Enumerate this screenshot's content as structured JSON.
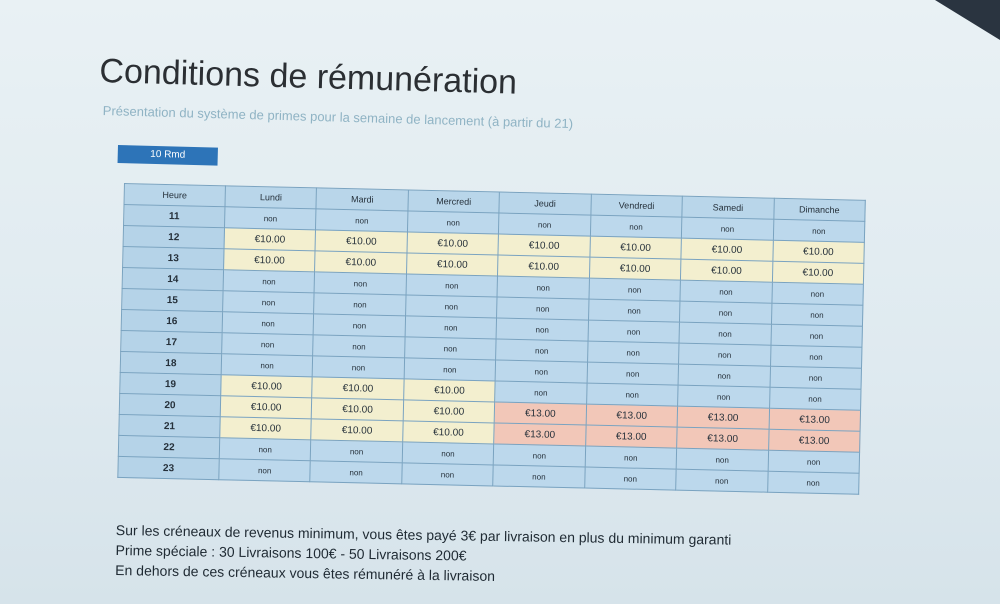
{
  "title": "Conditions de rémunération",
  "subtitle": "Présentation du système de primes pour la semaine de lancement (à partir du 21)",
  "badge": "10 Rmd",
  "table": {
    "headers": [
      "Heure",
      "Lundi",
      "Mardi",
      "Mercredi",
      "Jeudi",
      "Vendredi",
      "Samedi",
      "Dimanche"
    ],
    "rows": [
      {
        "hour": "11",
        "cells": [
          "non",
          "non",
          "non",
          "non",
          "non",
          "non",
          "non"
        ]
      },
      {
        "hour": "12",
        "cells": [
          "€10.00",
          "€10.00",
          "€10.00",
          "€10.00",
          "€10.00",
          "€10.00",
          "€10.00"
        ]
      },
      {
        "hour": "13",
        "cells": [
          "€10.00",
          "€10.00",
          "€10.00",
          "€10.00",
          "€10.00",
          "€10.00",
          "€10.00"
        ]
      },
      {
        "hour": "14",
        "cells": [
          "non",
          "non",
          "non",
          "non",
          "non",
          "non",
          "non"
        ]
      },
      {
        "hour": "15",
        "cells": [
          "non",
          "non",
          "non",
          "non",
          "non",
          "non",
          "non"
        ]
      },
      {
        "hour": "16",
        "cells": [
          "non",
          "non",
          "non",
          "non",
          "non",
          "non",
          "non"
        ]
      },
      {
        "hour": "17",
        "cells": [
          "non",
          "non",
          "non",
          "non",
          "non",
          "non",
          "non"
        ]
      },
      {
        "hour": "18",
        "cells": [
          "non",
          "non",
          "non",
          "non",
          "non",
          "non",
          "non"
        ]
      },
      {
        "hour": "19",
        "cells": [
          "€10.00",
          "€10.00",
          "€10.00",
          "non",
          "non",
          "non",
          "non"
        ]
      },
      {
        "hour": "20",
        "cells": [
          "€10.00",
          "€10.00",
          "€10.00",
          "€13.00",
          "€13.00",
          "€13.00",
          "€13.00"
        ]
      },
      {
        "hour": "21",
        "cells": [
          "€10.00",
          "€10.00",
          "€10.00",
          "€13.00",
          "€13.00",
          "€13.00",
          "€13.00"
        ]
      },
      {
        "hour": "22",
        "cells": [
          "non",
          "non",
          "non",
          "non",
          "non",
          "non",
          "non"
        ]
      },
      {
        "hour": "23",
        "cells": [
          "non",
          "non",
          "non",
          "non",
          "non",
          "non",
          "non"
        ]
      }
    ]
  },
  "footer": {
    "line1": "Sur les créneaux de revenus minimum, vous êtes payé 3€ par livraison en plus du minimum garanti",
    "line2": "Prime spéciale : 30 Livraisons 100€ - 50 Livraisons 200€",
    "line3": "En dehors de ces créneaux vous êtes rémunéré à la livraison"
  },
  "colors": {
    "badge": "#2d74b8",
    "table_blue": "#bcd8ec",
    "table_cream": "#f3efcf",
    "table_pink": "#f2c7b8"
  }
}
